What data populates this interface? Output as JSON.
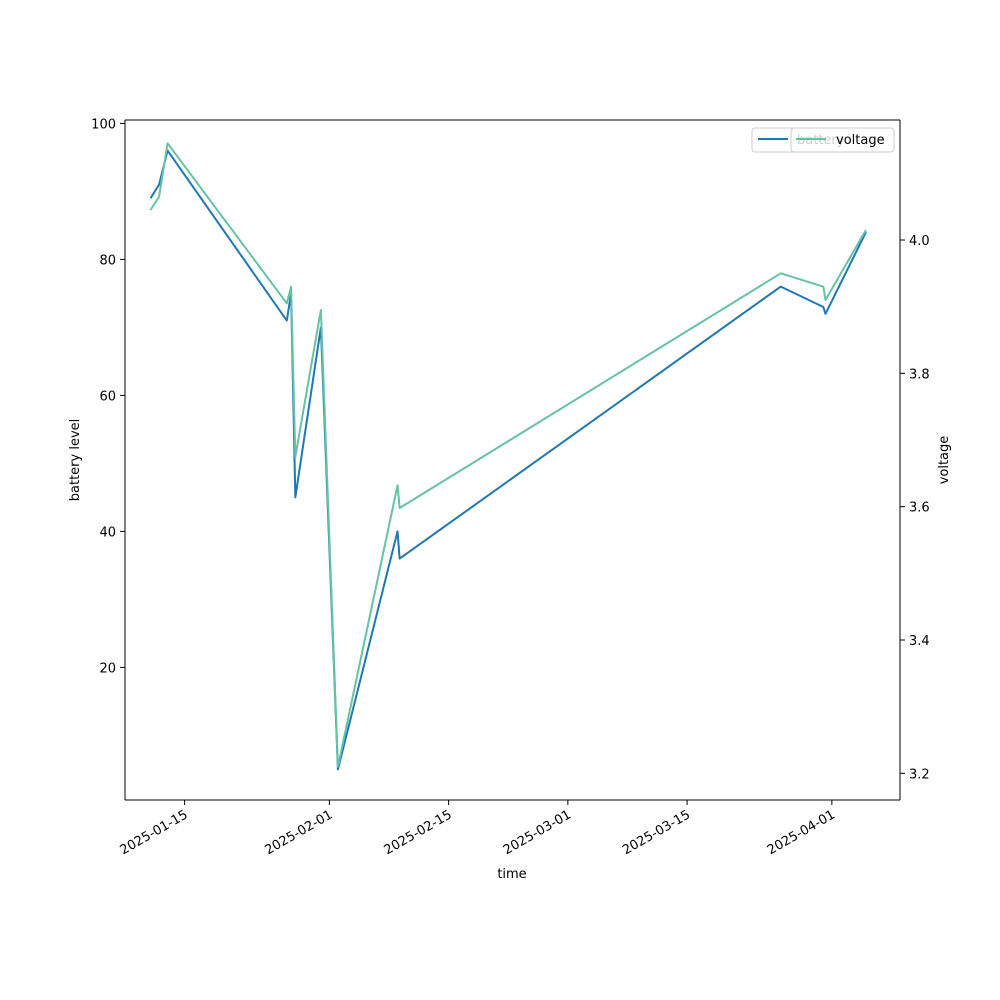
{
  "chart_data": {
    "type": "line",
    "xlabel": "time",
    "ylabel_left": "battery level",
    "ylabel_right": "voltage",
    "x_ticks": [
      "2025-01-15",
      "2025-02-01",
      "2025-02-15",
      "2025-03-01",
      "2025-03-15",
      "2025-04-01"
    ],
    "y_left_ticks": [
      20,
      40,
      60,
      80,
      100
    ],
    "y_right_ticks": [
      "3.2",
      "3.4",
      "3.6",
      "3.8",
      "4.0"
    ],
    "x_range": [
      "2025-01-08",
      "2025-04-09"
    ],
    "y_left_range": [
      0.5,
      100.5
    ],
    "y_right_range": [
      3.16,
      4.18
    ],
    "series": [
      {
        "name": "battery",
        "axis": "left",
        "color": "#1f77b4",
        "points": [
          [
            "2025-01-11",
            89
          ],
          [
            "2025-01-12",
            91
          ],
          [
            "2025-01-13",
            96
          ],
          [
            "2025-01-27",
            71
          ],
          [
            "2025-01-27T12:00",
            75
          ],
          [
            "2025-01-28",
            45
          ],
          [
            "2025-01-31",
            70
          ],
          [
            "2025-02-02",
            5
          ],
          [
            "2025-02-09",
            40
          ],
          [
            "2025-02-09T06:00",
            36
          ],
          [
            "2025-03-26",
            76
          ],
          [
            "2025-03-31",
            73
          ],
          [
            "2025-03-31T06:00",
            72
          ],
          [
            "2025-04-05",
            84
          ]
        ]
      },
      {
        "name": "voltage",
        "axis": "right",
        "color": "#66c2a5",
        "points": [
          [
            "2025-01-11",
            4.045
          ],
          [
            "2025-01-12",
            4.065
          ],
          [
            "2025-01-13",
            4.145
          ],
          [
            "2025-01-27",
            3.905
          ],
          [
            "2025-01-27T12:00",
            3.93
          ],
          [
            "2025-01-28",
            3.675
          ],
          [
            "2025-01-31",
            3.895
          ],
          [
            "2025-02-02",
            3.21
          ],
          [
            "2025-02-09",
            3.632
          ],
          [
            "2025-02-09T06:00",
            3.598
          ],
          [
            "2025-03-26",
            3.95
          ],
          [
            "2025-03-31",
            3.93
          ],
          [
            "2025-03-31T06:00",
            3.91
          ],
          [
            "2025-04-05",
            4.015
          ]
        ]
      }
    ],
    "legend_left": {
      "label": "battery"
    },
    "legend_right": {
      "label": "voltage"
    },
    "grid": false,
    "legend_position": "top-right"
  }
}
